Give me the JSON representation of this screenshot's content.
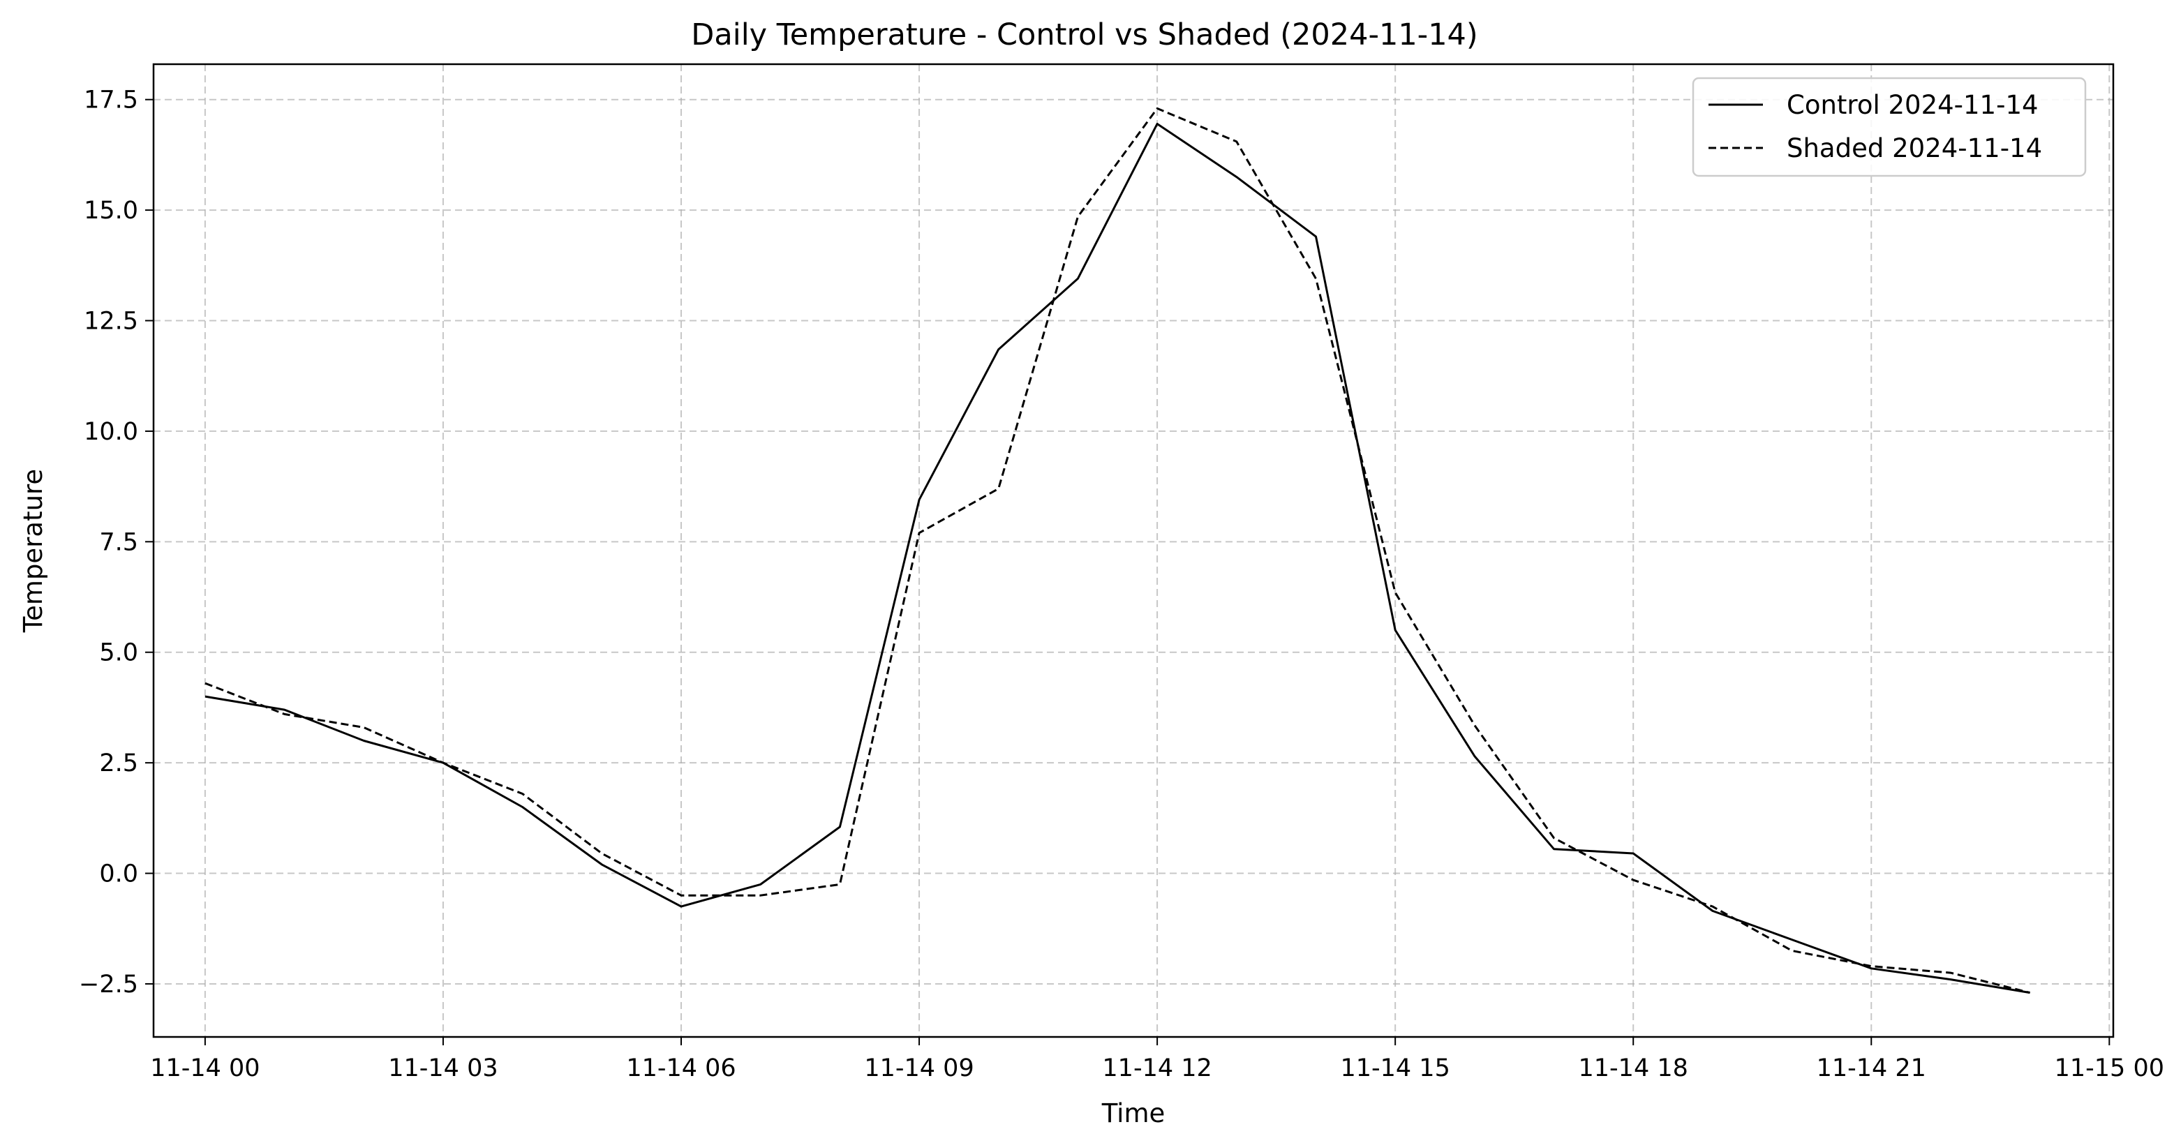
{
  "chart_data": {
    "type": "line",
    "title": "Daily Temperature - Control vs Shaded (2024-11-14)",
    "xlabel": "Time",
    "ylabel": "Temperature",
    "xlim": [
      -0.65,
      24.05
    ],
    "ylim": [
      -3.7,
      18.3
    ],
    "x_ticks": [
      {
        "value": 0,
        "label": "11-14 00"
      },
      {
        "value": 3,
        "label": "11-14 03"
      },
      {
        "value": 6,
        "label": "11-14 06"
      },
      {
        "value": 9,
        "label": "11-14 09"
      },
      {
        "value": 12,
        "label": "11-14 12"
      },
      {
        "value": 15,
        "label": "11-14 15"
      },
      {
        "value": 18,
        "label": "11-14 18"
      },
      {
        "value": 21,
        "label": "11-14 21"
      },
      {
        "value": 24,
        "label": "11-15 00"
      }
    ],
    "y_ticks": [
      {
        "value": -2.5,
        "label": "−2.5"
      },
      {
        "value": 0,
        "label": "0.0"
      },
      {
        "value": 2.5,
        "label": "2.5"
      },
      {
        "value": 5,
        "label": "5.0"
      },
      {
        "value": 7.5,
        "label": "7.5"
      },
      {
        "value": 10,
        "label": "10.0"
      },
      {
        "value": 12.5,
        "label": "12.5"
      },
      {
        "value": 15,
        "label": "15.0"
      },
      {
        "value": 17.5,
        "label": "17.5"
      }
    ],
    "grid": true,
    "legend_position": "top-right",
    "x": [
      0,
      1,
      2,
      3,
      4,
      5,
      6,
      7,
      8,
      9,
      10,
      11,
      12,
      13,
      14,
      15,
      16,
      17,
      18,
      19,
      20,
      21,
      22,
      23
    ],
    "series": [
      {
        "name": "Control 2024-11-14",
        "style": "solid",
        "color": "#000000",
        "values": [
          4.0,
          3.7,
          3.0,
          2.5,
          1.5,
          0.2,
          -0.75,
          -0.25,
          1.05,
          8.45,
          11.85,
          13.45,
          16.95,
          15.75,
          14.4,
          5.5,
          2.65,
          0.55,
          0.45,
          -0.85,
          -1.5,
          -2.15,
          -2.4,
          -2.7
        ]
      },
      {
        "name": "Shaded 2024-11-14",
        "style": "dashed",
        "color": "#000000",
        "values": [
          4.3,
          3.6,
          3.3,
          2.5,
          1.8,
          0.45,
          -0.5,
          -0.5,
          -0.25,
          7.7,
          8.7,
          14.85,
          17.3,
          16.55,
          13.45,
          6.35,
          3.35,
          0.8,
          -0.15,
          -0.75,
          -1.75,
          -2.1,
          -2.25,
          -2.7
        ]
      }
    ]
  }
}
